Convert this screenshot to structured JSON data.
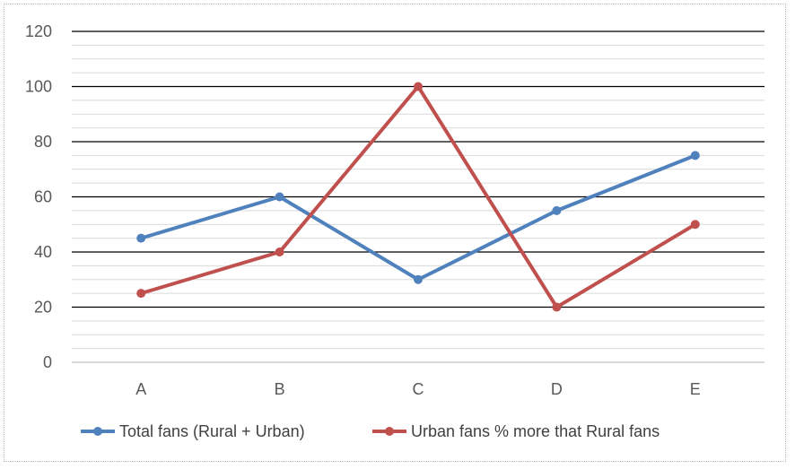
{
  "chart_data": {
    "type": "line",
    "title": "",
    "xlabel": "",
    "ylabel": "",
    "categories": [
      "A",
      "B",
      "C",
      "D",
      "E"
    ],
    "ylim": [
      0,
      120
    ],
    "y_ticks": [
      "0",
      "20",
      "40",
      "60",
      "80",
      "100",
      "120"
    ],
    "grid": {
      "major": true,
      "minor": true
    },
    "legend_position": "bottom",
    "series": [
      {
        "name": "Total fans (Rural + Urban)",
        "values": [
          45,
          60,
          30,
          55,
          75
        ],
        "color": "#4f81bd"
      },
      {
        "name": "Urban fans % more that Rural fans",
        "values": [
          25,
          40,
          100,
          20,
          50
        ],
        "color": "#c0504d"
      }
    ]
  }
}
